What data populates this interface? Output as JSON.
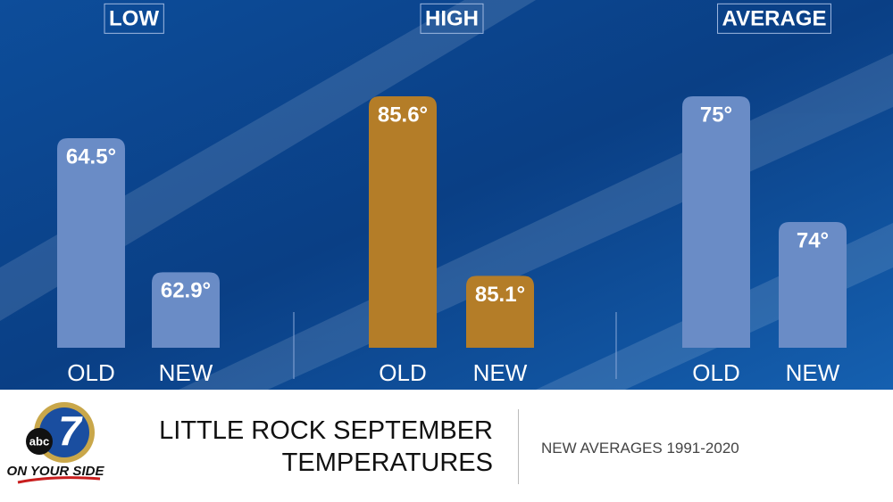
{
  "chart_data": [
    {
      "type": "bar",
      "title": "LOW",
      "categories": [
        "OLD",
        "NEW"
      ],
      "values": [
        64.5,
        62.9
      ],
      "value_labels": [
        "64.5°",
        "62.9°"
      ],
      "color": "#6a8cc6",
      "ylim": [
        62,
        65
      ]
    },
    {
      "type": "bar",
      "title": "HIGH",
      "categories": [
        "OLD",
        "NEW"
      ],
      "values": [
        85.6,
        85.1
      ],
      "value_labels": [
        "85.6°",
        "85.1°"
      ],
      "color": "#b47d28",
      "ylim": [
        84.9,
        85.6
      ]
    },
    {
      "type": "bar",
      "title": "AVERAGE",
      "categories": [
        "OLD",
        "NEW"
      ],
      "values": [
        75,
        74
      ],
      "value_labels": [
        "75°",
        "74°"
      ],
      "color": "#6a8cc6",
      "ylim": [
        73,
        75
      ]
    }
  ],
  "footer": {
    "title": "LITTLE ROCK SEPTEMBER TEMPERATURES",
    "subtitle": "NEW AVERAGES 1991-2020",
    "logo": {
      "network": "abc",
      "channel": "7",
      "slogan": "ON YOUR SIDE"
    }
  }
}
